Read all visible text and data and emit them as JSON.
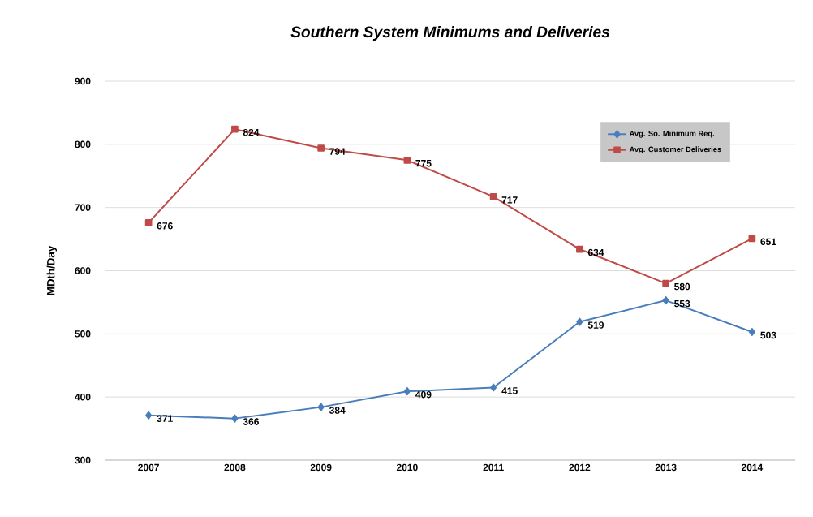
{
  "chart_data": {
    "type": "line",
    "title": "*Southern System Minimums and Deliveries*",
    "ylabel": "MDth/Day",
    "categories": [
      "2007",
      "2008",
      "2009",
      "2010",
      "2011",
      "2012",
      "2013",
      "2014"
    ],
    "series": [
      {
        "name": "Avg. So. Minimum Req.",
        "color": "#4a7ebb",
        "marker": "diamond",
        "values": [
          371,
          366,
          384,
          409,
          415,
          519,
          553,
          503
        ]
      },
      {
        "name": "Avg. Customer Deliveries",
        "color": "#be4b48",
        "marker": "square",
        "values": [
          676,
          824,
          794,
          775,
          717,
          634,
          580,
          651
        ]
      }
    ],
    "ylim": [
      300,
      900
    ],
    "yticks": [
      300,
      400,
      500,
      600,
      700,
      800,
      900
    ],
    "grid": "y",
    "legend": "top right",
    "data_labels": true
  }
}
